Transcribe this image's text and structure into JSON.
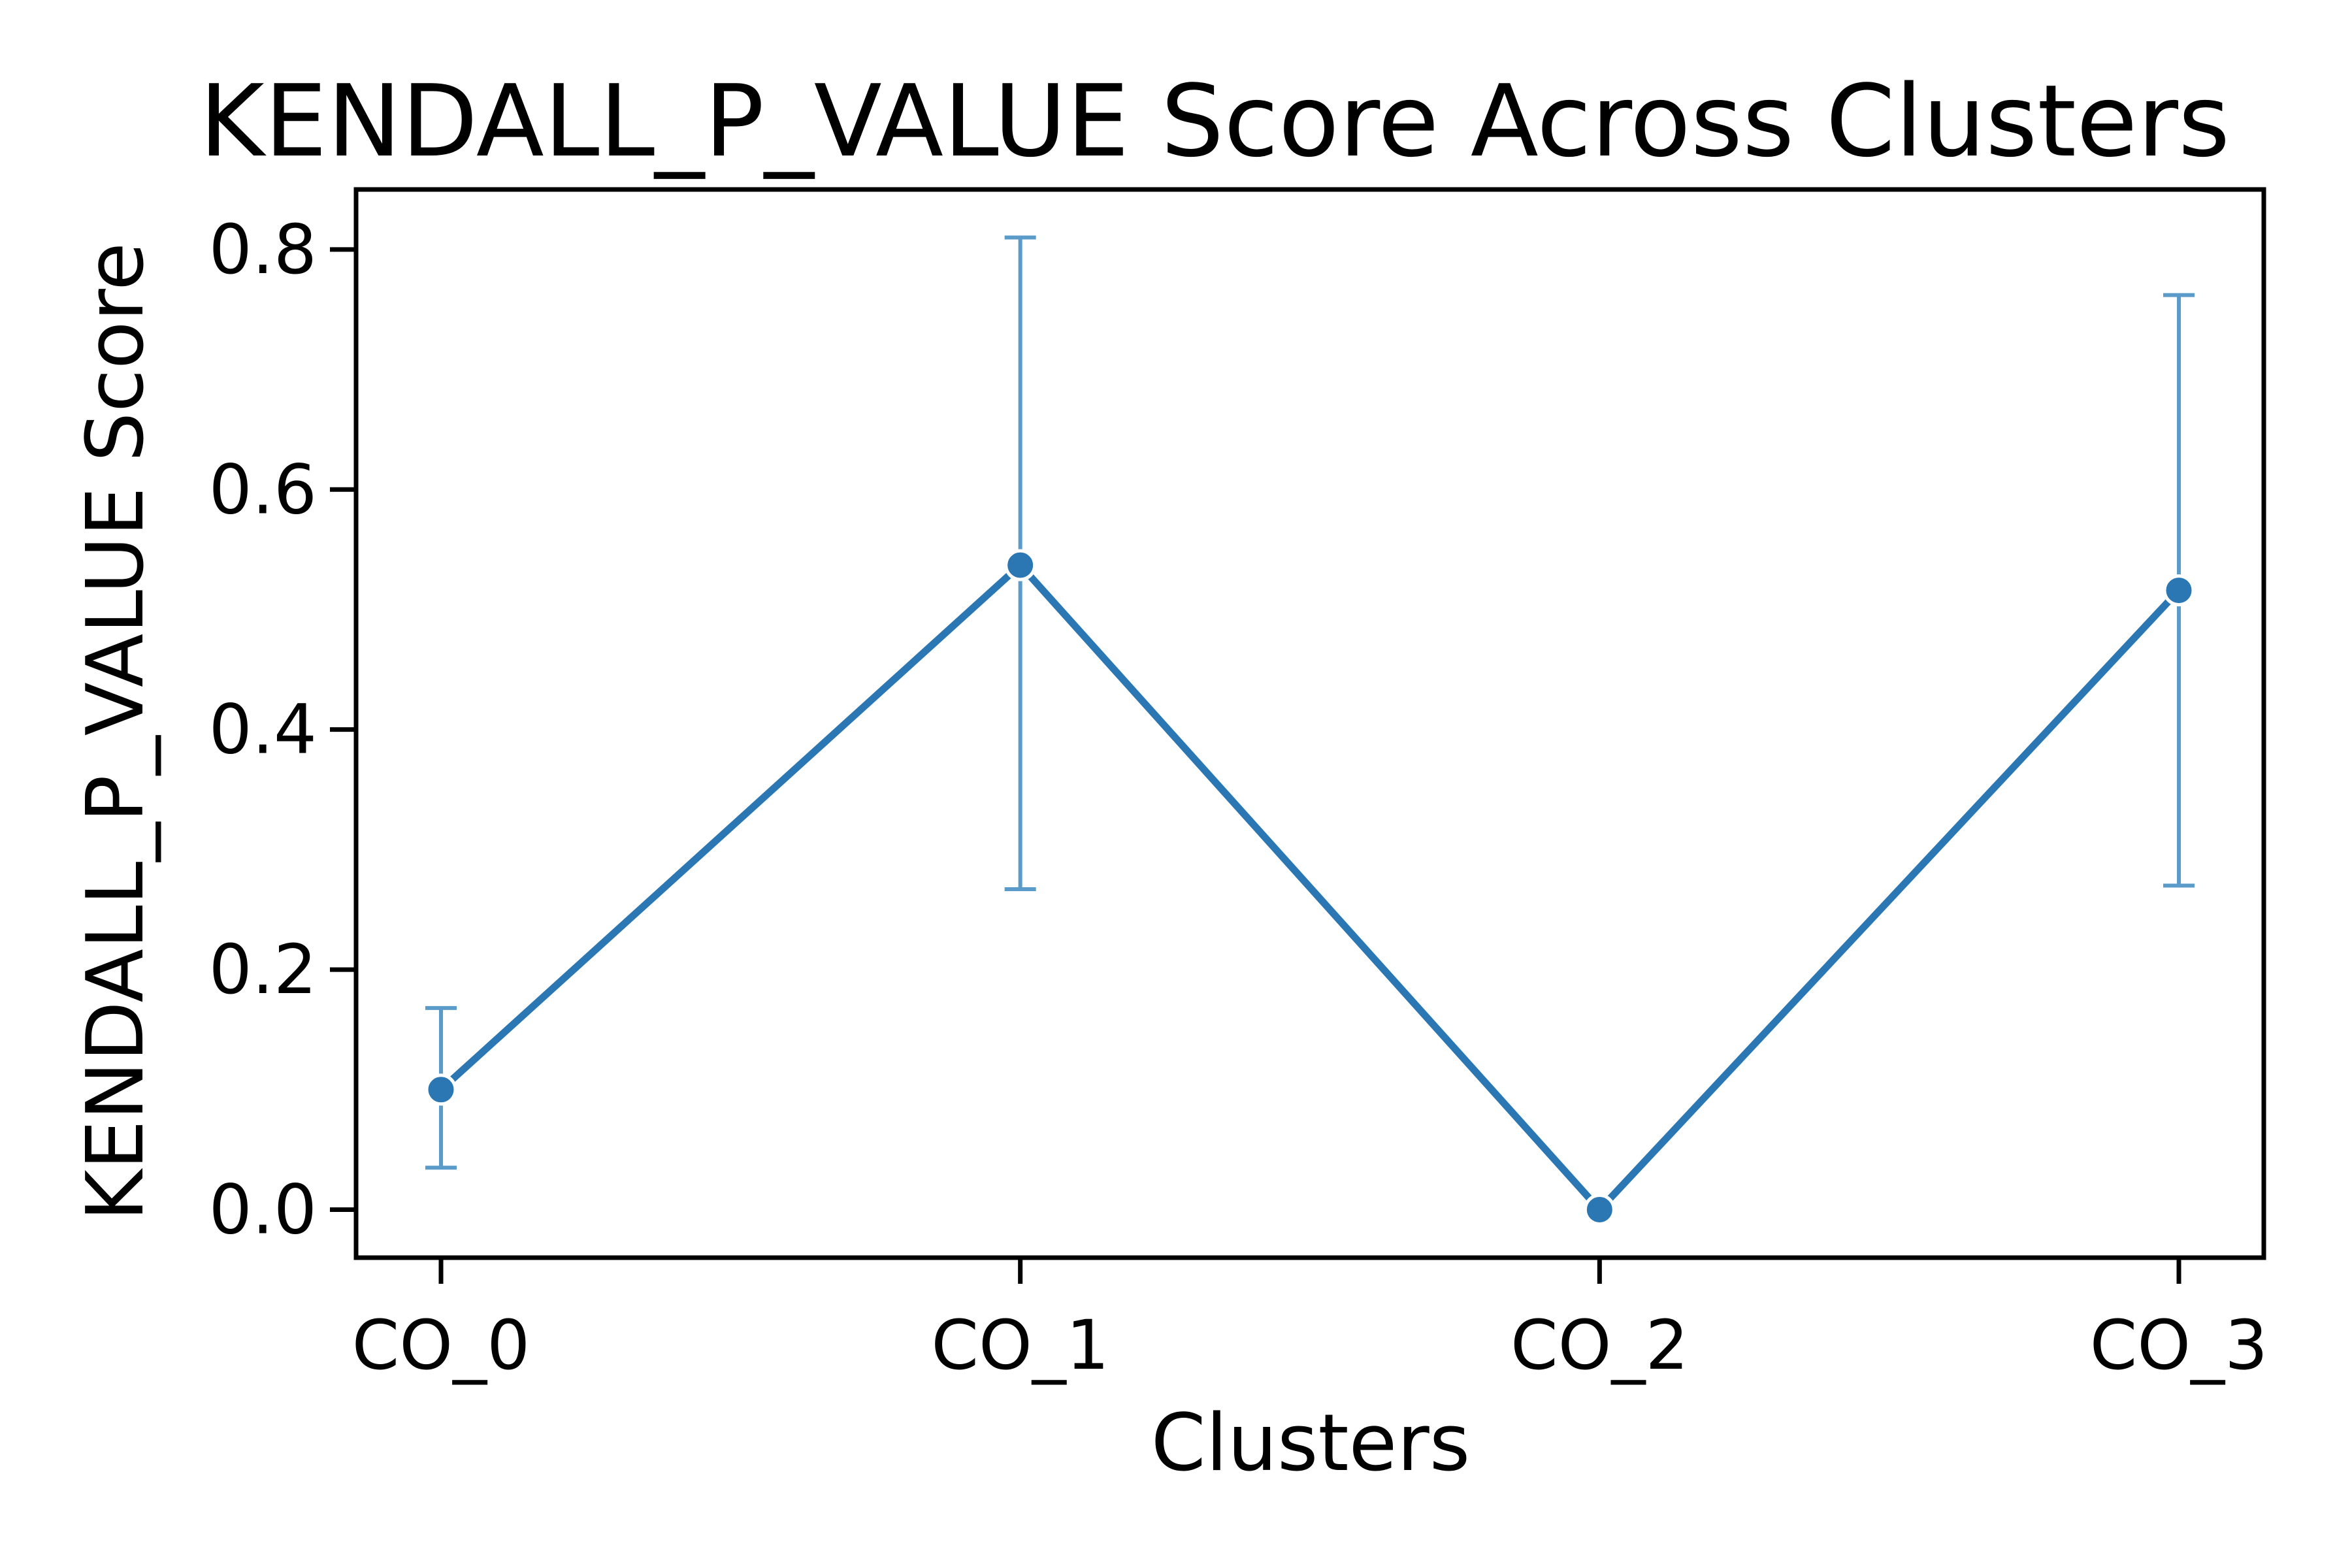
{
  "chart_data": {
    "type": "line",
    "title": "KENDALL_P_VALUE Score Across Clusters",
    "xlabel": "Clusters",
    "ylabel": "KENDALL_P_VALUE Score",
    "categories": [
      "CO_0",
      "CO_1",
      "CO_2",
      "CO_3"
    ],
    "series": [
      {
        "values": [
          0.1,
          0.537,
          0.0,
          0.516
        ],
        "error_low": [
          0.035,
          0.267,
          0.0,
          0.27
        ],
        "error_high": [
          0.168,
          0.81,
          0.0,
          0.762
        ],
        "color": "#2a77b4",
        "errorbar_color": "#5a9bc9"
      }
    ],
    "ylim": [
      -0.04,
      0.85
    ],
    "yticks": [
      "0.0",
      "0.2",
      "0.4",
      "0.6",
      "0.8"
    ],
    "grid": false,
    "legend": null
  }
}
